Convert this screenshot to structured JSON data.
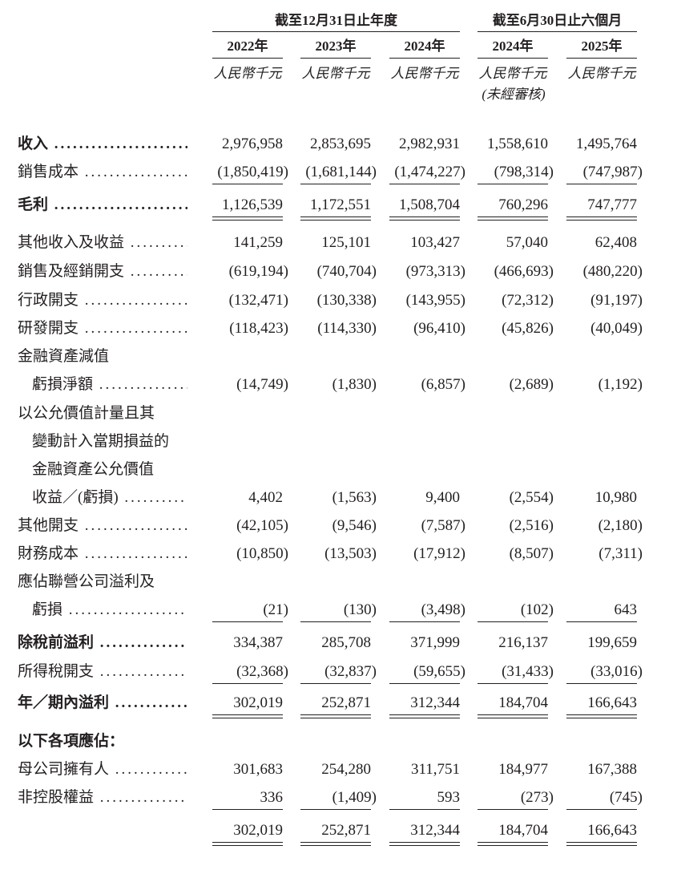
{
  "header": {
    "group_annual": "截至12月31日止年度",
    "group_interim": "截至6月30日止六個月",
    "years": [
      "2022年",
      "2023年",
      "2024年",
      "2024年",
      "2025年"
    ],
    "unit": "人民幣千元",
    "unaudited": "(未經審核)"
  },
  "rows": [
    {
      "label": "收入",
      "bold": true,
      "values": [
        "2,976,958",
        "2,853,695",
        "2,982,931",
        "1,558,610",
        "1,495,764"
      ]
    },
    {
      "label": "銷售成本",
      "values": [
        "(1,850,419)",
        "(1,681,144)",
        "(1,474,227)",
        "(798,314)",
        "(747,987)"
      ],
      "rule": "single"
    },
    {
      "label": "毛利",
      "bold": true,
      "values": [
        "1,126,539",
        "1,172,551",
        "1,508,704",
        "760,296",
        "747,777"
      ],
      "rule": "double"
    },
    {
      "label": "其他收入及收益",
      "values": [
        "141,259",
        "125,101",
        "103,427",
        "57,040",
        "62,408"
      ]
    },
    {
      "label": "銷售及經銷開支",
      "values": [
        "(619,194)",
        "(740,704)",
        "(973,313)",
        "(466,693)",
        "(480,220)"
      ]
    },
    {
      "label": "行政開支",
      "values": [
        "(132,471)",
        "(130,338)",
        "(143,955)",
        "(72,312)",
        "(91,197)"
      ]
    },
    {
      "label": "研發開支",
      "values": [
        "(118,423)",
        "(114,330)",
        "(96,410)",
        "(45,826)",
        "(40,049)"
      ]
    },
    {
      "label": "金融資產減值",
      "nodots": true
    },
    {
      "label": "虧損淨額",
      "indent": true,
      "values": [
        "(14,749)",
        "(1,830)",
        "(6,857)",
        "(2,689)",
        "(1,192)"
      ]
    },
    {
      "label": "以公允價值計量且其",
      "nodots": true
    },
    {
      "label": "變動計入當期損益的",
      "indent": true,
      "nodots": true
    },
    {
      "label": "金融資產公允價值",
      "indent": true,
      "nodots": true
    },
    {
      "label": "收益／(虧損)",
      "indent": true,
      "values": [
        "4,402",
        "(1,563)",
        "9,400",
        "(2,554)",
        "10,980"
      ]
    },
    {
      "label": "其他開支",
      "values": [
        "(42,105)",
        "(9,546)",
        "(7,587)",
        "(2,516)",
        "(2,180)"
      ]
    },
    {
      "label": "財務成本",
      "values": [
        "(10,850)",
        "(13,503)",
        "(17,912)",
        "(8,507)",
        "(7,311)"
      ]
    },
    {
      "label": "應佔聯營公司溢利及",
      "nodots": true
    },
    {
      "label": "虧損",
      "indent": true,
      "values": [
        "(21)",
        "(130)",
        "(3,498)",
        "(102)",
        "643"
      ],
      "rule": "single"
    },
    {
      "label": "除稅前溢利",
      "bold": true,
      "values": [
        "334,387",
        "285,708",
        "371,999",
        "216,137",
        "199,659"
      ]
    },
    {
      "label": "所得稅開支",
      "values": [
        "(32,368)",
        "(32,837)",
        "(59,655)",
        "(31,433)",
        "(33,016)"
      ],
      "rule": "single"
    },
    {
      "label": "年／期內溢利",
      "bold": true,
      "values": [
        "302,019",
        "252,871",
        "312,344",
        "184,704",
        "166,643"
      ],
      "rule": "double"
    },
    {
      "label": "以下各項應佔：",
      "bold": true,
      "nodots": true
    },
    {
      "label": "母公司擁有人",
      "values": [
        "301,683",
        "254,280",
        "311,751",
        "184,977",
        "167,388"
      ]
    },
    {
      "label": "非控股權益",
      "values": [
        "336",
        "(1,409)",
        "593",
        "(273)",
        "(745)"
      ],
      "rule": "single"
    },
    {
      "label": "",
      "nodots": true,
      "values": [
        "302,019",
        "252,871",
        "312,344",
        "184,704",
        "166,643"
      ],
      "rule": "double"
    }
  ]
}
